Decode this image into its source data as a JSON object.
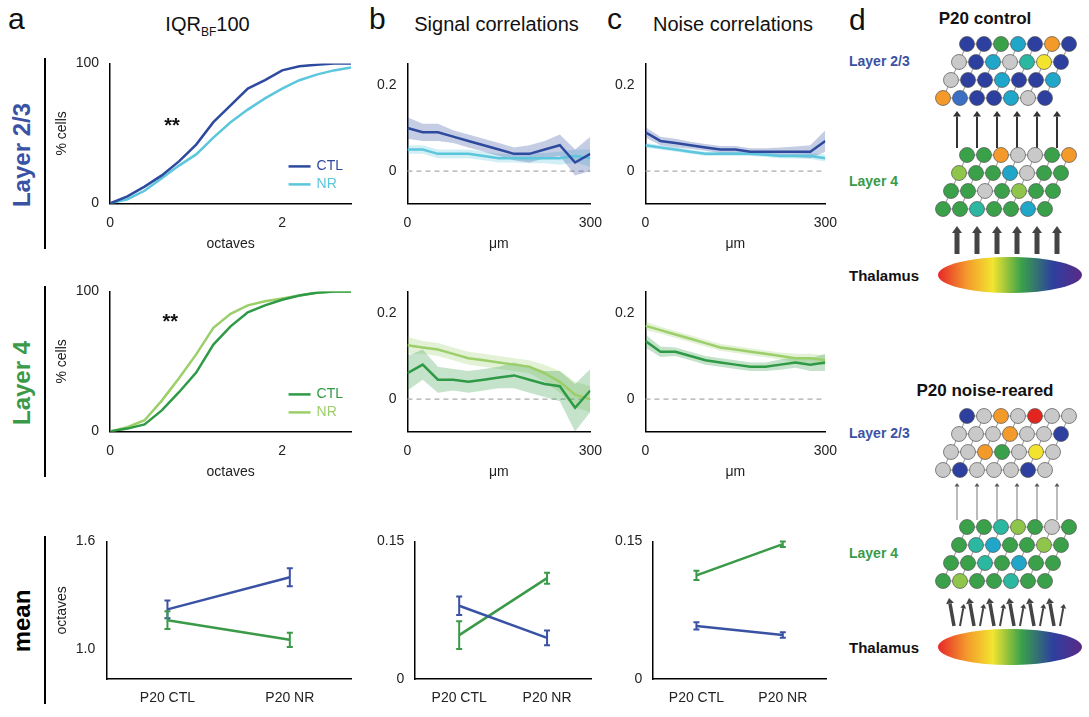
{
  "figure": {
    "columns": [
      {
        "letter": "a",
        "title": "IQR",
        "title_sub": "BF",
        "title_suffix": "100"
      },
      {
        "letter": "b",
        "title": "Signal correlations"
      },
      {
        "letter": "c",
        "title": "Noise correlations"
      }
    ],
    "rows": [
      {
        "label": "Layer 2/3",
        "color": "#3a52a4"
      },
      {
        "label": "Layer 4",
        "color": "#3a9a48"
      },
      {
        "label": "mean",
        "color": "#000000"
      }
    ]
  },
  "chart_data": [
    {
      "type": "line",
      "xlabel": "octaves",
      "ylabel": "% cells",
      "xlim": [
        0,
        2.8
      ],
      "xticks": [
        0,
        2
      ],
      "ylim": [
        0,
        100
      ],
      "yticks": [
        0,
        100
      ],
      "grid": false,
      "legend": "lower right",
      "x": [
        0,
        0.2,
        0.4,
        0.6,
        0.8,
        1.0,
        1.2,
        1.4,
        1.6,
        1.8,
        2.0,
        2.2,
        2.4,
        2.6,
        2.8
      ],
      "series": [
        {
          "name": "CTL",
          "color": "#2e4a9e",
          "values": [
            0,
            5,
            12,
            20,
            30,
            42,
            58,
            70,
            82,
            88,
            95,
            98,
            99,
            100,
            100
          ]
        },
        {
          "name": "NR",
          "color": "#5cc6dd",
          "values": [
            0,
            3,
            9,
            18,
            27,
            35,
            47,
            58,
            67,
            75,
            82,
            88,
            92,
            95,
            97
          ]
        }
      ],
      "annotations": [
        {
          "text": "**",
          "x": 0.72,
          "y": 55
        }
      ]
    },
    {
      "type": "line",
      "xlabel": "μm",
      "xlim": [
        0,
        300
      ],
      "xticks": [
        0,
        300
      ],
      "ylim": [
        -0.075,
        0.25
      ],
      "yticks": [
        0,
        0.2
      ],
      "grid": false,
      "baseline": 0,
      "x": [
        0,
        25,
        50,
        75,
        100,
        125,
        150,
        175,
        200,
        225,
        250,
        275,
        300
      ],
      "series": [
        {
          "name": "CTL",
          "color": "#2e4a9e",
          "values": [
            0.1,
            0.09,
            0.09,
            0.08,
            0.07,
            0.06,
            0.05,
            0.04,
            0.04,
            0.05,
            0.06,
            0.02,
            0.04
          ],
          "error": [
            0.025,
            0.02,
            0.02,
            0.015,
            0.015,
            0.015,
            0.015,
            0.015,
            0.02,
            0.02,
            0.025,
            0.03,
            0.04
          ]
        },
        {
          "name": "NR",
          "color": "#5cc6dd",
          "values": [
            0.05,
            0.05,
            0.04,
            0.04,
            0.04,
            0.035,
            0.03,
            0.03,
            0.03,
            0.03,
            0.03,
            0.035,
            0.03
          ],
          "error": [
            0.01,
            0.01,
            0.01,
            0.01,
            0.01,
            0.01,
            0.01,
            0.01,
            0.012,
            0.012,
            0.015,
            0.015,
            0.02
          ]
        }
      ]
    },
    {
      "type": "line",
      "xlabel": "μm",
      "xlim": [
        0,
        300
      ],
      "xticks": [
        0,
        300
      ],
      "ylim": [
        -0.075,
        0.25
      ],
      "yticks": [
        0,
        0.2
      ],
      "grid": false,
      "baseline": 0,
      "x": [
        0,
        25,
        50,
        75,
        100,
        125,
        150,
        175,
        200,
        225,
        250,
        275,
        300
      ],
      "series": [
        {
          "name": "CTL",
          "color": "#2e4a9e",
          "values": [
            0.09,
            0.07,
            0.065,
            0.06,
            0.055,
            0.05,
            0.05,
            0.045,
            0.045,
            0.045,
            0.045,
            0.045,
            0.07
          ],
          "error": [
            0.012,
            0.01,
            0.01,
            0.008,
            0.008,
            0.008,
            0.008,
            0.008,
            0.008,
            0.01,
            0.012,
            0.015,
            0.025
          ]
        },
        {
          "name": "NR",
          "color": "#5cc6dd",
          "values": [
            0.06,
            0.055,
            0.05,
            0.045,
            0.04,
            0.04,
            0.04,
            0.04,
            0.038,
            0.035,
            0.035,
            0.035,
            0.03
          ],
          "error": [
            0.006,
            0.005,
            0.005,
            0.005,
            0.005,
            0.005,
            0.005,
            0.005,
            0.005,
            0.005,
            0.006,
            0.007,
            0.008
          ]
        }
      ]
    },
    {
      "type": "line",
      "xlabel": "octaves",
      "ylabel": "% cells",
      "xlim": [
        0,
        2.8
      ],
      "xticks": [
        0,
        2
      ],
      "ylim": [
        0,
        100
      ],
      "yticks": [
        0,
        100
      ],
      "grid": false,
      "legend": "lower right",
      "x": [
        0,
        0.2,
        0.4,
        0.6,
        0.8,
        1.0,
        1.2,
        1.4,
        1.6,
        1.8,
        2.0,
        2.2,
        2.4,
        2.6,
        2.8
      ],
      "series": [
        {
          "name": "CTL",
          "color": "#2f9a45",
          "values": [
            0,
            2,
            5,
            15,
            28,
            42,
            62,
            75,
            85,
            90,
            94,
            97,
            99,
            100,
            100
          ]
        },
        {
          "name": "NR",
          "color": "#9ccf6a",
          "values": [
            0,
            3,
            8,
            22,
            38,
            55,
            74,
            84,
            90,
            93,
            95,
            97,
            99,
            100,
            100
          ]
        }
      ],
      "annotations": [
        {
          "text": "**",
          "x": 0.7,
          "y": 78
        }
      ]
    },
    {
      "type": "line",
      "xlabel": "μm",
      "xlim": [
        0,
        300
      ],
      "xticks": [
        0,
        300
      ],
      "ylim": [
        -0.075,
        0.25
      ],
      "yticks": [
        0,
        0.2
      ],
      "grid": false,
      "baseline": 0,
      "x": [
        0,
        25,
        50,
        75,
        100,
        125,
        150,
        175,
        200,
        225,
        250,
        275,
        300
      ],
      "series": [
        {
          "name": "CTL",
          "color": "#2f9a45",
          "values": [
            0.06,
            0.08,
            0.045,
            0.045,
            0.04,
            0.045,
            0.05,
            0.055,
            0.045,
            0.035,
            0.03,
            -0.02,
            0.02
          ],
          "error": [
            0.04,
            0.035,
            0.03,
            0.025,
            0.025,
            0.025,
            0.025,
            0.03,
            0.03,
            0.03,
            0.035,
            0.055,
            0.05
          ]
        },
        {
          "name": "NR",
          "color": "#9ccf6a",
          "values": [
            0.125,
            0.12,
            0.115,
            0.105,
            0.095,
            0.09,
            0.085,
            0.08,
            0.075,
            0.06,
            0.04,
            0.01,
            0.0
          ],
          "error": [
            0.02,
            0.015,
            0.015,
            0.015,
            0.015,
            0.015,
            0.015,
            0.015,
            0.015,
            0.02,
            0.025,
            0.03,
            0.03
          ]
        }
      ]
    },
    {
      "type": "line",
      "xlabel": "μm",
      "xlim": [
        0,
        300
      ],
      "xticks": [
        0,
        300
      ],
      "ylim": [
        -0.075,
        0.25
      ],
      "yticks": [
        0,
        0.2
      ],
      "grid": false,
      "baseline": 0,
      "x": [
        0,
        25,
        50,
        75,
        100,
        125,
        150,
        175,
        200,
        225,
        250,
        275,
        300
      ],
      "series": [
        {
          "name": "CTL",
          "color": "#2f9a45",
          "values": [
            0.135,
            0.11,
            0.11,
            0.1,
            0.09,
            0.085,
            0.08,
            0.075,
            0.075,
            0.08,
            0.085,
            0.08,
            0.085
          ],
          "error": [
            0.015,
            0.012,
            0.01,
            0.01,
            0.01,
            0.01,
            0.01,
            0.01,
            0.01,
            0.012,
            0.012,
            0.015,
            0.02
          ]
        },
        {
          "name": "NR",
          "color": "#9ccf6a",
          "values": [
            0.17,
            0.16,
            0.15,
            0.14,
            0.13,
            0.12,
            0.115,
            0.11,
            0.105,
            0.1,
            0.095,
            0.095,
            0.09
          ],
          "error": [
            0.01,
            0.008,
            0.008,
            0.008,
            0.008,
            0.008,
            0.008,
            0.008,
            0.008,
            0.008,
            0.01,
            0.01,
            0.012
          ]
        }
      ]
    },
    {
      "type": "line",
      "ylabel": "octaves",
      "categories": [
        "P20 CTL",
        "P20 NR"
      ],
      "ylim": [
        0.83,
        1.6
      ],
      "yticks": [
        {
          "value": 1,
          "label": "1.0"
        },
        1.6
      ],
      "grid": false,
      "series": [
        {
          "color": "#3a52a4",
          "values": [
            1.22,
            1.4
          ],
          "error": [
            0.05,
            0.05
          ]
        },
        {
          "color": "#3a9a48",
          "values": [
            1.16,
            1.05
          ],
          "error": [
            0.05,
            0.04
          ]
        }
      ]
    },
    {
      "type": "line",
      "categories": [
        "P20 CTL",
        "P20 NR"
      ],
      "ylim": [
        0,
        0.15
      ],
      "yticks": [
        0,
        0.15
      ],
      "grid": false,
      "series": [
        {
          "color": "#3a52a4",
          "values": [
            0.08,
            0.045
          ],
          "error": [
            0.01,
            0.008
          ]
        },
        {
          "color": "#3a9a48",
          "values": [
            0.048,
            0.11
          ],
          "error": [
            0.015,
            0.006
          ]
        }
      ]
    },
    {
      "type": "line",
      "categories": [
        "P20 CTL",
        "P20 NR"
      ],
      "ylim": [
        0,
        0.15
      ],
      "yticks": [
        0,
        0.15
      ],
      "grid": false,
      "series": [
        {
          "color": "#3a52a4",
          "values": [
            0.058,
            0.048
          ],
          "error": [
            0.004,
            0.003
          ]
        },
        {
          "color": "#3a9a48",
          "values": [
            0.113,
            0.147
          ],
          "error": [
            0.005,
            0.003
          ]
        }
      ]
    }
  ],
  "diagram": {
    "letter": "d",
    "panels": [
      {
        "title": "P20 control",
        "labels": [
          "Layer 2/3",
          "Layer 4",
          "Thalamus"
        ]
      },
      {
        "title": "P20 noise-reared",
        "labels": [
          "Layer 2/3",
          "Layer 4",
          "Thalamus"
        ]
      }
    ]
  }
}
